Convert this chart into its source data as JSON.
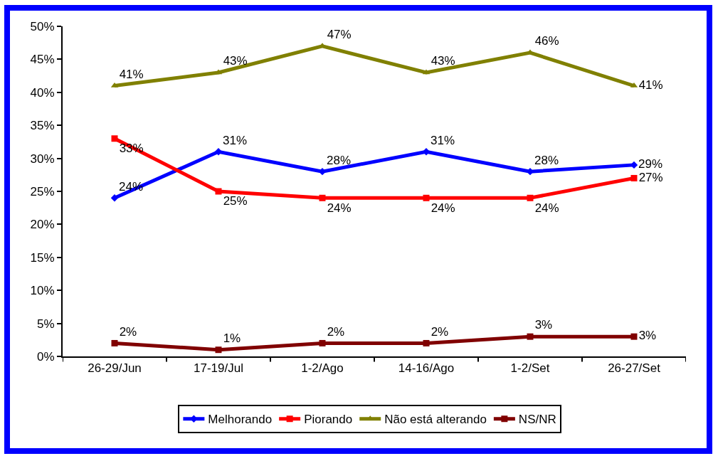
{
  "chart_data": {
    "type": "line",
    "categories": [
      "26-29/Jun",
      "17-19/Jul",
      "1-2/Ago",
      "14-16/Ago",
      "1-2/Set",
      "26-27/Set"
    ],
    "series": [
      {
        "name": "Melhorando",
        "color": "#0000ff",
        "marker": "diamond",
        "values": [
          24,
          31,
          28,
          31,
          28,
          29
        ],
        "value_labels": [
          "24%",
          "31%",
          "28%",
          "31%",
          "28%",
          "29%"
        ]
      },
      {
        "name": "Piorando",
        "color": "#ff0000",
        "marker": "square",
        "values": [
          33,
          25,
          24,
          24,
          24,
          27
        ],
        "value_labels": [
          "33%",
          "25%",
          "24%",
          "24%",
          "24%",
          "27%"
        ]
      },
      {
        "name": "Não está alterando",
        "color": "#808000",
        "marker": "triangle",
        "values": [
          41,
          43,
          47,
          43,
          46,
          41
        ],
        "value_labels": [
          "41%",
          "43%",
          "47%",
          "43%",
          "46%",
          "41%"
        ]
      },
      {
        "name": "NS/NR",
        "color": "#800000",
        "marker": "square",
        "values": [
          2,
          1,
          2,
          2,
          3,
          3
        ],
        "value_labels": [
          "2%",
          "1%",
          "2%",
          "2%",
          "3%",
          "3%"
        ]
      }
    ],
    "ylim": [
      0,
      50
    ],
    "yticks": [
      {
        "value": 0,
        "label": "0%"
      },
      {
        "value": 5,
        "label": "5%"
      },
      {
        "value": 10,
        "label": "10%"
      },
      {
        "value": 15,
        "label": "15%"
      },
      {
        "value": 20,
        "label": "20%"
      },
      {
        "value": 25,
        "label": "25%"
      },
      {
        "value": 30,
        "label": "30%"
      },
      {
        "value": 35,
        "label": "35%"
      },
      {
        "value": 40,
        "label": "40%"
      },
      {
        "value": 45,
        "label": "45%"
      },
      {
        "value": 50,
        "label": "50%"
      }
    ],
    "grid": false,
    "legend": "bottom",
    "line_style": "solid"
  }
}
